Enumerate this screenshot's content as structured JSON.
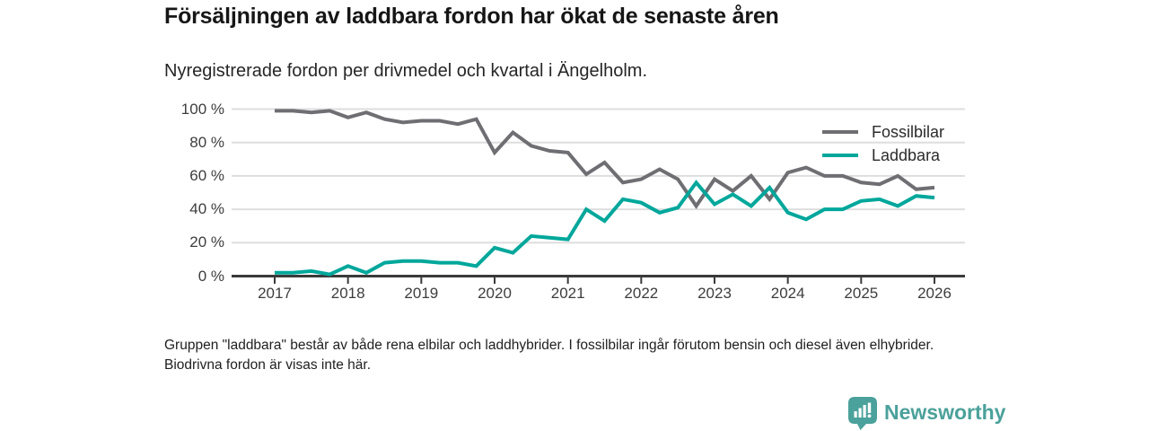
{
  "header": {
    "title": "Försäljningen av laddbara fordon har ökat de senaste åren",
    "subtitle": "Nyregistrerade fordon per drivmedel och kvartal i Ängelholm."
  },
  "chart_data": {
    "type": "line",
    "title": "Försäljningen av laddbara fordon har ökat de senaste åren",
    "subtitle": "Nyregistrerade fordon per drivmedel och kvartal i Ängelholm.",
    "x_quarters": [
      "2017Q1",
      "2017Q2",
      "2017Q3",
      "2017Q4",
      "2018Q1",
      "2018Q2",
      "2018Q3",
      "2018Q4",
      "2019Q1",
      "2019Q2",
      "2019Q3",
      "2019Q4",
      "2020Q1",
      "2020Q2",
      "2020Q3",
      "2020Q4",
      "2021Q1",
      "2021Q2",
      "2021Q3",
      "2021Q4",
      "2022Q1",
      "2022Q2",
      "2022Q3",
      "2022Q4",
      "2023Q1",
      "2023Q2",
      "2023Q3",
      "2023Q4",
      "2024Q1",
      "2024Q2",
      "2024Q3",
      "2024Q4",
      "2025Q1",
      "2025Q2",
      "2025Q3",
      "2025Q4",
      "2026Q1"
    ],
    "series": [
      {
        "name": "Fossilbilar",
        "color": "#6e6e73",
        "values": [
          99,
          99,
          98,
          99,
          95,
          98,
          94,
          92,
          93,
          93,
          91,
          94,
          74,
          86,
          78,
          75,
          74,
          61,
          68,
          56,
          58,
          64,
          58,
          42,
          58,
          51,
          60,
          46,
          62,
          65,
          60,
          60,
          56,
          55,
          60,
          52,
          53
        ]
      },
      {
        "name": "Laddbara",
        "color": "#00a79b",
        "values": [
          2,
          2,
          3,
          1,
          6,
          2,
          8,
          9,
          9,
          8,
          8,
          6,
          17,
          14,
          24,
          23,
          22,
          40,
          33,
          46,
          44,
          38,
          41,
          56,
          43,
          49,
          42,
          53,
          38,
          34,
          40,
          40,
          45,
          46,
          42,
          48,
          47
        ]
      }
    ],
    "ylim": [
      0,
      100
    ],
    "ytick_values": [
      0,
      20,
      40,
      60,
      80,
      100
    ],
    "ytick_labels": [
      "0 %",
      "20 %",
      "40 %",
      "60 %",
      "80 %",
      "100 %"
    ],
    "xticks": [
      "2017",
      "2018",
      "2019",
      "2020",
      "2021",
      "2022",
      "2023",
      "2024",
      "2025",
      "2026"
    ],
    "grid": "horizontal",
    "legend_position": "top-right"
  },
  "footnote": {
    "text": "Gruppen \"laddbara\" består av både rena elbilar och laddhybrider. I fossilbilar ingår förutom bensin och diesel även elhybrider. Biodrivna fordon är visas inte här."
  },
  "branding": {
    "wordmark": "Newsworthy",
    "color": "#4ba19b"
  }
}
